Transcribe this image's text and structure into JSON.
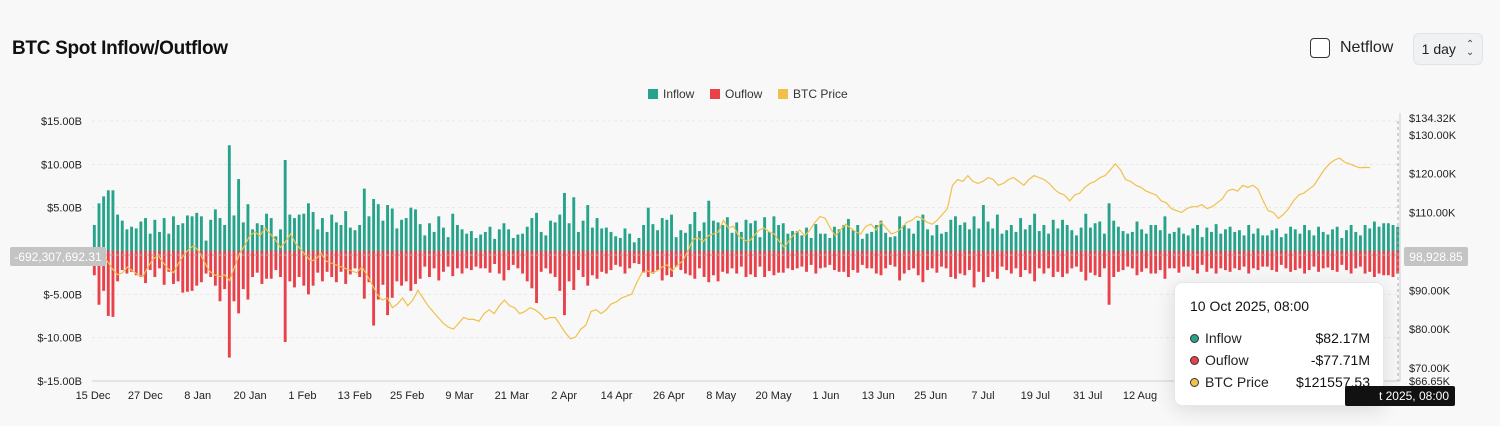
{
  "header": {
    "title": "BTC Spot Inflow/Outflow",
    "netflow_label": "Netflow",
    "period_value": "1 day"
  },
  "crosshair": {
    "left_value": "-692,307,692.31",
    "right_value": "98,928.85",
    "x_label": "t 2025, 08:00"
  },
  "tooltip": {
    "date": "10 Oct 2025, 08:00",
    "rows": [
      {
        "name": "Inflow",
        "value": "$82.17M"
      },
      {
        "name": "Ouflow",
        "value": "-$77.71M"
      },
      {
        "name": "BTC Price",
        "value": "$121557.53"
      }
    ]
  },
  "colors": {
    "inflow": "#26a38a",
    "outflow": "#e8414a",
    "price": "#f0c04a"
  },
  "chart_data": {
    "type": "bar",
    "legend": [
      "Inflow",
      "Ouflow",
      "BTC Price"
    ],
    "legend_position": "top-center",
    "x_ticks": [
      "15 Dec",
      "27 Dec",
      "8 Jan",
      "20 Jan",
      "1 Feb",
      "13 Feb",
      "25 Feb",
      "9 Mar",
      "21 Mar",
      "2 Apr",
      "14 Apr",
      "26 Apr",
      "8 May",
      "20 May",
      "1 Jun",
      "13 Jun",
      "25 Jun",
      "7 Jul",
      "19 Jul",
      "31 Jul",
      "12 Aug"
    ],
    "y_left_ticks": [
      "$15.00B",
      "$10.00B",
      "$5.00B",
      "$0",
      "$-5.00B",
      "$-10.00B",
      "$-15.00B"
    ],
    "y_left_range": [
      -15,
      15
    ],
    "y_right_ticks": [
      "$134.32K",
      "$130.00K",
      "$120.00K",
      "$110.00K",
      "$90.00K",
      "$80.00K",
      "$70.00K",
      "$66.65K"
    ],
    "y_right_range": [
      66.65,
      134.32
    ],
    "grid": true,
    "inflow_billions": [
      3.0,
      5.5,
      6.3,
      7.0,
      7.0,
      4.2,
      3.5,
      2.5,
      2.8,
      2.6,
      3.4,
      3.8,
      2.0,
      3.6,
      2.2,
      3.8,
      2.0,
      4.0,
      3.0,
      3.2,
      4.1,
      4.0,
      4.4,
      4.0,
      1.2,
      3.6,
      4.8,
      3.8,
      3.0,
      12.2,
      4.1,
      8.3,
      3.3,
      5.4,
      2.5,
      3.2,
      3.0,
      4.3,
      3.8,
      1.7,
      2.5,
      10.5,
      4.2,
      3.8,
      4.2,
      4.3,
      5.5,
      4.5,
      2.5,
      3.8,
      2.2,
      4.2,
      3.3,
      3.0,
      4.6,
      2.7,
      2.4,
      3.0,
      7.2,
      4.0,
      6.0,
      5.4,
      3.5,
      5.3,
      4.9,
      2.6,
      3.6,
      3.8,
      5.0,
      4.8,
      3.1,
      1.8,
      3.2,
      2.2,
      4.0,
      2.7,
      1.6,
      4.3,
      3.0,
      2.5,
      2.0,
      2.3,
      1.5,
      1.9,
      2.2,
      2.8,
      1.4,
      2.5,
      3.2,
      2.5,
      1.5,
      1.9,
      2.0,
      2.8,
      3.8,
      4.4,
      2.2,
      1.8,
      3.5,
      3.3,
      4.2,
      6.7,
      3.2,
      6.2,
      2.2,
      3.5,
      5.3,
      2.7,
      3.8,
      2.6,
      2.7,
      2.2,
      1.7,
      1.5,
      2.6,
      2.0,
      1.0,
      1.5,
      3.0,
      5.0,
      3.1,
      2.4,
      3.8,
      3.6,
      4.2,
      1.6,
      2.4,
      2.1,
      3.1,
      4.5,
      2.3,
      3.3,
      5.8,
      3.5,
      3.3,
      3.0,
      3.9,
      2.1,
      3.3,
      2.2,
      3.6,
      3.2,
      3.5,
      1.6,
      3.9,
      2.2,
      4.0,
      3.0,
      3.2,
      2.0,
      2.3,
      2.3,
      1.8,
      2.7,
      1.5,
      3.1,
      2.0,
      2.0,
      1.5,
      2.8,
      2.5,
      3.0,
      3.7,
      2.4,
      3.0,
      1.4,
      2.0,
      2.2,
      3.0,
      3.5,
      2.1,
      1.6,
      1.7,
      4.0,
      3.0,
      2.6,
      2.0,
      3.5,
      4.2,
      2.5,
      1.8,
      3.0,
      2.0,
      2.2,
      3.6,
      4.0,
      3.0,
      3.3,
      2.5,
      4.0,
      2.6,
      5.3,
      3.4,
      2.6,
      4.2,
      2.0,
      2.4,
      3.0,
      2.2,
      3.8,
      2.5,
      3.0,
      4.3,
      2.3,
      3.0,
      2.0,
      3.6,
      2.6,
      3.6,
      3.0,
      2.4,
      1.8,
      2.7,
      4.3,
      2.7,
      3.2,
      3.4,
      2.0,
      5.5,
      3.5,
      2.8,
      2.3,
      2.0,
      2.2,
      3.4,
      2.5,
      2.0,
      3.0,
      3.0,
      2.4,
      4.0,
      2.0,
      2.2,
      2.7,
      2.0,
      1.8,
      2.6,
      3.0,
      1.6,
      2.7,
      2.2,
      3.1,
      2.0,
      2.5,
      2.8,
      2.2,
      2.4,
      1.8,
      3.0,
      2.0,
      2.6,
      1.8,
      1.8,
      2.4,
      2.6,
      1.6,
      2.0,
      2.8,
      2.5,
      2.0,
      3.0,
      2.4,
      1.8,
      2.8,
      2.2,
      1.9,
      2.5,
      2.8,
      1.5,
      2.4,
      3.0,
      2.2,
      1.8,
      3.0,
      2.6,
      3.4,
      2.8,
      3.2,
      3.2,
      3.0,
      2.8
    ],
    "outflow_billions": [
      -2.8,
      -6.2,
      -4.6,
      -7.5,
      -7.6,
      -3.5,
      -2.2,
      -2.6,
      -2.4,
      -2.8,
      -3.0,
      -3.7,
      -2.2,
      -3.0,
      -2.0,
      -3.9,
      -2.4,
      -3.8,
      -3.5,
      -4.8,
      -4.7,
      -4.6,
      -4.0,
      -3.6,
      -2.6,
      -3.0,
      -4.0,
      -5.8,
      -4.4,
      -12.3,
      -5.8,
      -7.2,
      -4.4,
      -5.6,
      -3.0,
      -2.5,
      -3.8,
      -3.2,
      -3.2,
      -2.2,
      -3.0,
      -10.5,
      -3.5,
      -4.2,
      -3.0,
      -4.0,
      -5.0,
      -4.0,
      -2.5,
      -3.5,
      -2.4,
      -3.0,
      -3.6,
      -2.4,
      -3.8,
      -2.7,
      -2.0,
      -3.0,
      -5.5,
      -3.6,
      -8.6,
      -5.6,
      -3.9,
      -7.4,
      -5.4,
      -3.5,
      -4.0,
      -3.5,
      -4.6,
      -3.8,
      -3.2,
      -1.8,
      -3.0,
      -2.0,
      -3.4,
      -2.4,
      -1.8,
      -2.9,
      -2.0,
      -2.6,
      -2.0,
      -2.2,
      -1.8,
      -2.0,
      -2.0,
      -2.5,
      -1.5,
      -2.6,
      -3.4,
      -2.2,
      -1.6,
      -2.0,
      -2.6,
      -3.5,
      -4.3,
      -6.0,
      -2.4,
      -2.0,
      -2.6,
      -3.0,
      -4.6,
      -7.4,
      -3.5,
      -4.5,
      -2.2,
      -3.0,
      -4.0,
      -2.8,
      -3.2,
      -2.4,
      -2.6,
      -2.2,
      -1.6,
      -1.8,
      -2.6,
      -2.0,
      -1.4,
      -1.5,
      -2.5,
      -3.0,
      -2.6,
      -2.2,
      -3.4,
      -2.8,
      -3.0,
      -1.8,
      -2.2,
      -2.6,
      -2.8,
      -3.2,
      -2.0,
      -3.0,
      -3.6,
      -2.8,
      -3.5,
      -2.4,
      -2.6,
      -2.0,
      -2.6,
      -1.8,
      -3.0,
      -2.7,
      -3.0,
      -1.8,
      -3.0,
      -2.3,
      -2.8,
      -2.5,
      -2.5,
      -2.0,
      -2.2,
      -2.0,
      -1.8,
      -2.4,
      -1.6,
      -2.6,
      -2.0,
      -1.9,
      -1.6,
      -2.2,
      -2.4,
      -2.4,
      -3.0,
      -2.2,
      -2.5,
      -1.6,
      -2.0,
      -2.0,
      -2.6,
      -2.8,
      -2.0,
      -1.6,
      -1.8,
      -3.4,
      -2.6,
      -2.2,
      -2.0,
      -2.8,
      -3.6,
      -2.2,
      -2.0,
      -2.5,
      -1.8,
      -2.0,
      -3.0,
      -3.2,
      -2.6,
      -2.8,
      -2.2,
      -4.2,
      -2.4,
      -3.6,
      -3.0,
      -2.4,
      -3.2,
      -1.8,
      -2.2,
      -2.6,
      -2.0,
      -3.0,
      -2.2,
      -2.6,
      -3.5,
      -2.0,
      -2.6,
      -2.0,
      -3.0,
      -2.4,
      -3.0,
      -2.6,
      -2.0,
      -1.8,
      -2.4,
      -3.4,
      -2.5,
      -2.8,
      -3.0,
      -2.0,
      -6.2,
      -3.0,
      -2.4,
      -2.2,
      -1.8,
      -2.0,
      -2.8,
      -2.4,
      -2.0,
      -2.6,
      -2.6,
      -2.2,
      -3.2,
      -2.0,
      -2.0,
      -2.5,
      -1.8,
      -1.8,
      -2.2,
      -2.6,
      -1.6,
      -2.4,
      -2.0,
      -2.6,
      -2.0,
      -2.2,
      -2.4,
      -2.0,
      -2.2,
      -1.8,
      -2.6,
      -2.0,
      -2.2,
      -1.8,
      -1.8,
      -2.2,
      -2.4,
      -1.6,
      -2.0,
      -2.4,
      -2.2,
      -2.0,
      -2.6,
      -2.2,
      -1.8,
      -2.4,
      -2.0,
      -1.9,
      -2.2,
      -2.4,
      -1.6,
      -2.2,
      -2.6,
      -2.0,
      -1.8,
      -2.6,
      -2.4,
      -3.0,
      -2.6,
      -2.8,
      -2.8,
      -3.0,
      -2.6
    ],
    "btc_price_k": [
      101.0,
      100.5,
      99.0,
      97.5,
      95.5,
      94.0,
      94.5,
      96.0,
      95.0,
      94.0,
      93.5,
      96.0,
      98.0,
      99.0,
      97.0,
      95.5,
      94.5,
      97.0,
      99.0,
      100.5,
      101.5,
      100.0,
      97.5,
      95.0,
      94.0,
      93.5,
      94.0,
      92.5,
      96.0,
      99.5,
      101.5,
      104.0,
      105.0,
      104.0,
      106.0,
      104.5,
      103.0,
      101.0,
      102.5,
      104.5,
      102.0,
      100.5,
      99.0,
      97.5,
      98.0,
      99.5,
      97.5,
      97.0,
      96.5,
      96.0,
      95.5,
      95.0,
      94.5,
      96.0,
      94.0,
      91.5,
      89.0,
      87.5,
      88.0,
      85.5,
      86.5,
      88.0,
      86.0,
      87.5,
      90.0,
      88.0,
      86.0,
      84.5,
      83.0,
      81.5,
      80.5,
      80.0,
      81.5,
      83.0,
      82.5,
      82.5,
      82.0,
      84.0,
      85.0,
      84.0,
      86.0,
      87.5,
      86.0,
      85.5,
      84.0,
      84.5,
      85.5,
      85.0,
      84.0,
      82.5,
      83.0,
      83.0,
      81.0,
      79.0,
      77.5,
      78.0,
      80.0,
      81.0,
      84.5,
      85.0,
      84.0,
      85.0,
      86.5,
      87.0,
      88.0,
      88.5,
      89.0,
      92.0,
      94.5,
      95.0,
      94.5,
      95.0,
      96.0,
      96.5,
      95.0,
      96.5,
      97.5,
      100.0,
      103.0,
      103.5,
      102.5,
      104.0,
      104.5,
      105.0,
      108.0,
      106.0,
      106.5,
      104.0,
      103.0,
      102.5,
      104.0,
      105.5,
      106.0,
      105.0,
      104.5,
      102.5,
      101.0,
      103.0,
      104.5,
      105.5,
      104.0,
      105.5,
      107.5,
      109.0,
      108.5,
      106.0,
      104.0,
      105.5,
      107.0,
      106.0,
      105.0,
      104.5,
      106.5,
      107.0,
      105.5,
      107.5,
      106.0,
      104.5,
      105.0,
      106.0,
      107.5,
      108.0,
      109.0,
      108.5,
      107.5,
      107.0,
      108.0,
      109.5,
      111.0,
      117.0,
      118.5,
      118.0,
      119.5,
      118.0,
      117.5,
      118.0,
      119.0,
      118.5,
      117.0,
      117.5,
      118.5,
      119.0,
      118.0,
      117.0,
      118.5,
      119.5,
      119.0,
      118.5,
      117.5,
      116.0,
      115.0,
      114.5,
      113.0,
      114.5,
      115.0,
      116.5,
      117.5,
      118.0,
      119.0,
      119.5,
      121.0,
      122.5,
      121.0,
      118.5,
      118.0,
      117.0,
      116.5,
      115.5,
      115.0,
      114.5,
      113.0,
      112.5,
      111.0,
      110.5,
      110.0,
      111.0,
      111.5,
      111.5,
      112.0,
      111.0,
      111.5,
      112.5,
      113.5,
      115.5,
      116.0,
      115.5,
      117.0,
      116.5,
      117.0,
      116.0,
      113.0,
      110.5,
      110.0,
      108.5,
      109.5,
      111.0,
      113.0,
      114.5,
      115.0,
      116.0,
      117.0,
      119.0,
      121.0,
      122.5,
      123.5,
      124.0,
      123.0,
      122.5,
      122.0,
      121.5,
      121.6,
      121.56
    ]
  }
}
